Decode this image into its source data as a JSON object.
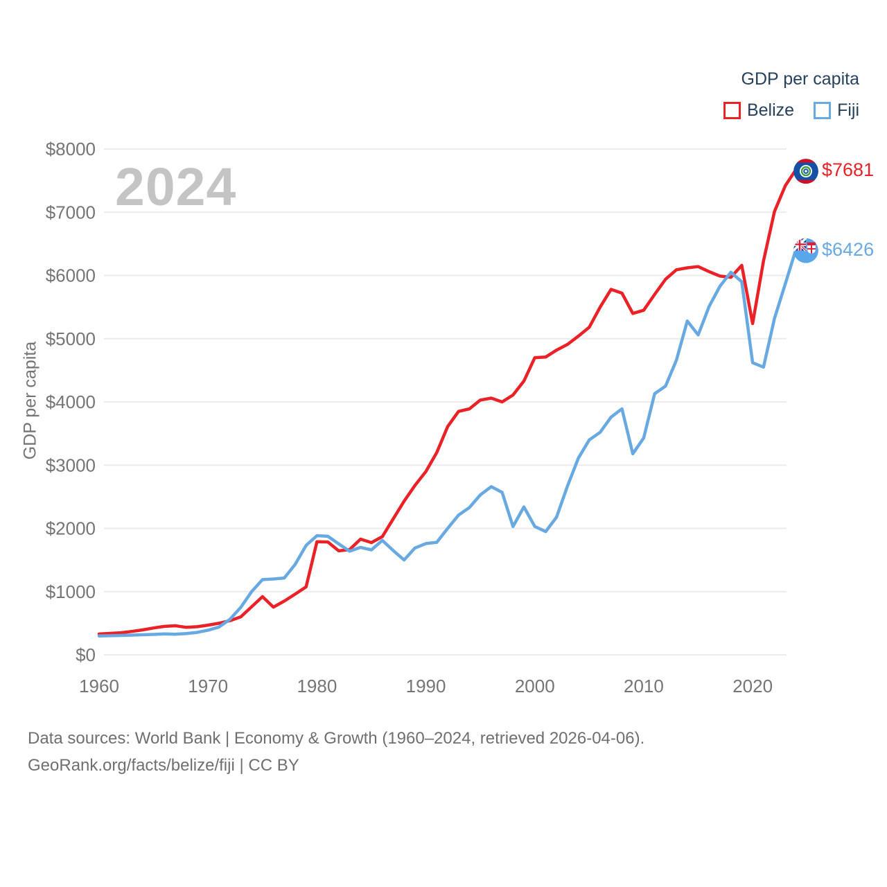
{
  "watermark": "2024",
  "legend": {
    "title": "GDP per capita",
    "items": [
      {
        "label": "Belize",
        "color": "#ea2127"
      },
      {
        "label": "Fiji",
        "color": "#68a9e2"
      }
    ]
  },
  "y_axis": {
    "title": "GDP per capita"
  },
  "end_labels": {
    "belize": "$7681",
    "fiji": "$6426"
  },
  "footer": {
    "line1": "Data sources: World Bank | Economy & Growth (1960–2024, retrieved 2026-04-06).",
    "line2": "GeoRank.org/facts/belize/fiji | CC BY"
  },
  "icons": {
    "belize_flag": "belize-flag-icon",
    "fiji_flag": "fiji-flag-icon"
  },
  "chart_data": {
    "type": "line",
    "title": "GDP per capita",
    "ylabel": "GDP per capita",
    "xlabel": "",
    "x_range": [
      1960,
      2024
    ],
    "y_range": [
      0,
      8000
    ],
    "grid": "horizontal",
    "legend_position": "top-right",
    "x_ticks": [
      {
        "label": "1960",
        "value": 1960
      },
      {
        "label": "1970",
        "value": 1970
      },
      {
        "label": "1980",
        "value": 1980
      },
      {
        "label": "1990",
        "value": 1990
      },
      {
        "label": "2000",
        "value": 2000
      },
      {
        "label": "2010",
        "value": 2010
      },
      {
        "label": "2020",
        "value": 2020
      }
    ],
    "y_ticks": [
      {
        "label": "$0",
        "value": 0
      },
      {
        "label": "$1000",
        "value": 1000
      },
      {
        "label": "$2000",
        "value": 2000
      },
      {
        "label": "$3000",
        "value": 3000
      },
      {
        "label": "$4000",
        "value": 4000
      },
      {
        "label": "$5000",
        "value": 5000
      },
      {
        "label": "$6000",
        "value": 6000
      },
      {
        "label": "$7000",
        "value": 7000
      },
      {
        "label": "$8000",
        "value": 8000
      }
    ],
    "series": [
      {
        "name": "Belize",
        "color": "#ea2127",
        "end_label": "$7681",
        "end_value": 7681,
        "values": [
          330,
          340,
          350,
          370,
          395,
          425,
          450,
          460,
          435,
          445,
          470,
          500,
          540,
          600,
          760,
          920,
          755,
          850,
          960,
          1075,
          1790,
          1785,
          1645,
          1665,
          1830,
          1775,
          1870,
          2150,
          2430,
          2680,
          2900,
          3200,
          3610,
          3850,
          3890,
          4030,
          4060,
          4000,
          4110,
          4330,
          4700,
          4710,
          4820,
          4910,
          5040,
          5180,
          5500,
          5780,
          5720,
          5400,
          5450,
          5700,
          5940,
          6090,
          6120,
          6140,
          6060,
          5990,
          5970,
          6160,
          5240,
          6230,
          7010,
          7420,
          7681
        ]
      },
      {
        "name": "Fiji",
        "color": "#68a9e2",
        "end_label": "$6426",
        "end_value": 6426,
        "values": [
          298,
          302,
          307,
          312,
          318,
          323,
          332,
          327,
          338,
          355,
          390,
          440,
          560,
          750,
          1000,
          1190,
          1200,
          1215,
          1430,
          1730,
          1885,
          1875,
          1755,
          1640,
          1700,
          1660,
          1810,
          1650,
          1500,
          1690,
          1760,
          1780,
          2000,
          2210,
          2330,
          2530,
          2660,
          2570,
          2030,
          2340,
          2030,
          1950,
          2180,
          2670,
          3110,
          3400,
          3520,
          3760,
          3890,
          3180,
          3430,
          4130,
          4250,
          4660,
          5280,
          5060,
          5510,
          5830,
          6050,
          5900,
          4620,
          4550,
          5320,
          5870,
          6426
        ]
      }
    ]
  }
}
